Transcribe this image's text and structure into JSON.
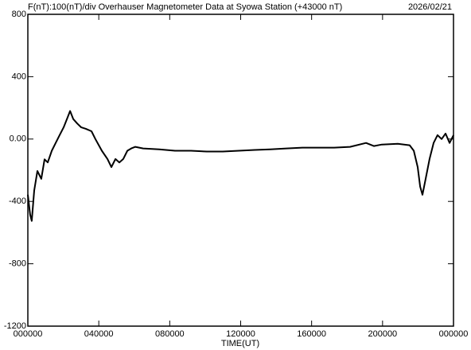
{
  "chart_data": {
    "type": "line",
    "title": "F(nT):100(nT)/div  Overhauser Magnetometer Data at Syowa Station (+43000 nT)",
    "date": "2026/02/21",
    "x_label": "TIME(UT)",
    "xlim": [
      0,
      24
    ],
    "xticks": [
      {
        "value": 0,
        "label": "000000"
      },
      {
        "value": 4,
        "label": "040000"
      },
      {
        "value": 8,
        "label": "080000"
      },
      {
        "value": 12,
        "label": "120000"
      },
      {
        "value": 16,
        "label": "160000"
      },
      {
        "value": 20,
        "label": "200000"
      },
      {
        "value": 24,
        "label": "000000"
      }
    ],
    "ylim": [
      -1200,
      800
    ],
    "yticks": [
      {
        "value": -1200,
        "label": "-1200"
      },
      {
        "value": -800,
        "label": "-800"
      },
      {
        "value": -400,
        "label": "-400"
      },
      {
        "value": 0,
        "label": "0.00"
      },
      {
        "value": 400,
        "label": "400"
      },
      {
        "value": 800,
        "label": "800"
      }
    ],
    "grid": false,
    "series": [
      {
        "color": "#000000",
        "x": [
          0,
          0.13,
          0.22,
          0.36,
          0.54,
          0.76,
          0.94,
          1.12,
          1.35,
          1.57,
          1.79,
          2.02,
          2.24,
          2.38,
          2.56,
          2.78,
          3.01,
          3.27,
          3.59,
          3.81,
          4.17,
          4.49,
          4.71,
          4.94,
          5.16,
          5.38,
          5.61,
          5.83,
          6.06,
          6.5,
          7.4,
          8.3,
          9.2,
          10.09,
          10.99,
          11.89,
          12.79,
          13.68,
          14.58,
          15.48,
          16.38,
          17.27,
          18.17,
          19.07,
          19.51,
          19.96,
          20.86,
          21.53,
          21.76,
          21.98,
          22.12,
          22.25,
          22.43,
          22.65,
          22.88,
          23.1,
          23.33,
          23.55,
          23.78,
          24
        ],
        "values": [
          -357,
          -485,
          -525,
          -330,
          -205,
          -255,
          -130,
          -150,
          -75,
          -25,
          25,
          75,
          138,
          180,
          128,
          100,
          75,
          66,
          50,
          0,
          -75,
          -128,
          -180,
          -128,
          -150,
          -128,
          -75,
          -60,
          -50,
          -60,
          -66,
          -75,
          -75,
          -80,
          -80,
          -75,
          -70,
          -66,
          -60,
          -55,
          -55,
          -55,
          -50,
          -25,
          -45,
          -35,
          -30,
          -40,
          -75,
          -180,
          -305,
          -357,
          -255,
          -128,
          -25,
          25,
          0,
          35,
          -25,
          25
        ]
      }
    ]
  }
}
